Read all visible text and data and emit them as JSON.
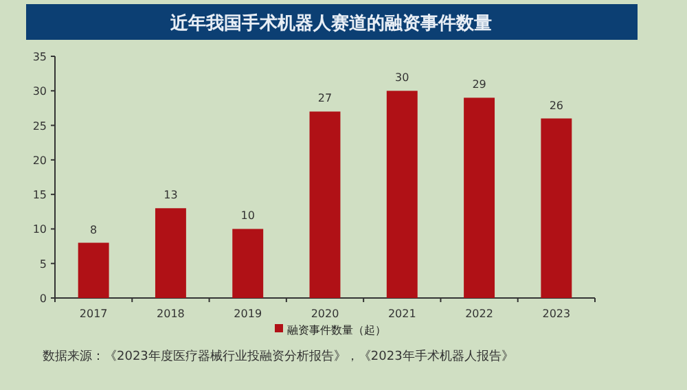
{
  "chart_data": {
    "type": "bar",
    "title": "近年我国手术机器人赛道的融资事件数量",
    "categories": [
      "2017",
      "2018",
      "2019",
      "2020",
      "2021",
      "2022",
      "2023"
    ],
    "series": [
      {
        "name": "融资事件数量（起）",
        "color": "#b01116",
        "values": [
          8,
          13,
          10,
          27,
          30,
          29,
          26
        ]
      }
    ],
    "ylim": [
      0,
      35
    ],
    "yticks": [
      0,
      5,
      10,
      15,
      20,
      25,
      30,
      35
    ],
    "data_labels": true,
    "legend": "bottom",
    "grid": false,
    "annotations": [
      "数据来源：《2023年度医疗器械行业投融资分析报告》，《2023年手术机器人报告》"
    ]
  }
}
